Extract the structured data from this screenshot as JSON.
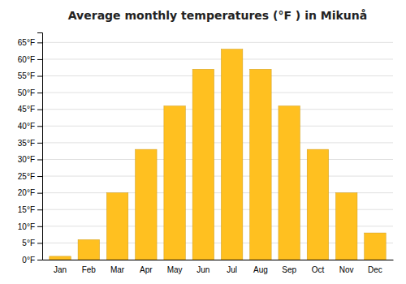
{
  "chart_data": {
    "type": "bar",
    "title": "Average monthly temperatures (°F ) in Mikunå",
    "categories": [
      "Jan",
      "Feb",
      "Mar",
      "Apr",
      "May",
      "Jun",
      "Jul",
      "Aug",
      "Sep",
      "Oct",
      "Nov",
      "Dec"
    ],
    "values": [
      1,
      6,
      20,
      33,
      46,
      57,
      63,
      57,
      46,
      33,
      20,
      8
    ],
    "color": "#FFC020",
    "ylim": [
      0,
      68
    ],
    "yticks": [
      {
        "value": 0,
        "label": "0°F"
      },
      {
        "value": 5,
        "label": "5°F"
      },
      {
        "value": 10,
        "label": "10°F"
      },
      {
        "value": 15,
        "label": "15°F"
      },
      {
        "value": 20,
        "label": "20°F"
      },
      {
        "value": 25,
        "label": "25°F"
      },
      {
        "value": 30,
        "label": "30°F"
      },
      {
        "value": 35,
        "label": "35°F"
      },
      {
        "value": 40,
        "label": "40°F"
      },
      {
        "value": 45,
        "label": "45°F"
      },
      {
        "value": 50,
        "label": "50°F"
      },
      {
        "value": 55,
        "label": "55°F"
      },
      {
        "value": 60,
        "label": "60°F"
      },
      {
        "value": 65,
        "label": "65°F"
      }
    ],
    "grid": true
  }
}
